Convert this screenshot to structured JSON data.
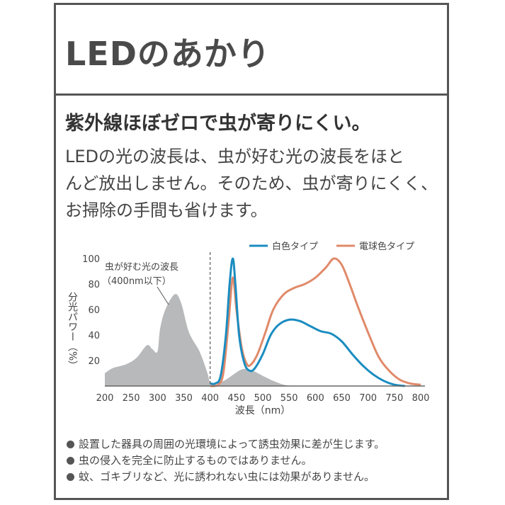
{
  "header": {
    "title": "LEDのあかり"
  },
  "headline": "紫外線ほぼゼロで虫が寄りにくい。",
  "body_lines": [
    "LEDの光の波長は、虫が好む光の波長をほと",
    "んど放出しません。そのため、虫が寄りにくく、",
    "お掃除の手間も省けます。"
  ],
  "chart_data": {
    "type": "line",
    "xlabel": "波長（nm）",
    "ylabel": "分光パワー（%）",
    "xlim": [
      200,
      800
    ],
    "ylim": [
      0,
      100
    ],
    "xticks": [
      200,
      250,
      300,
      350,
      400,
      450,
      500,
      550,
      600,
      650,
      700,
      750,
      800
    ],
    "yticks": [
      20,
      40,
      60,
      80,
      100
    ],
    "grid": false,
    "legend_position": "top-right",
    "annotation": {
      "line1": "虫が好む光の波長",
      "line2": "（400nm以下）",
      "boundary_x": 400
    },
    "colors": {
      "white": "#1a8cc0",
      "bulb": "#e08a6a",
      "insect": "#b8b9bb"
    },
    "series": [
      {
        "name": "白色タイプ",
        "type": "line",
        "x": [
          400,
          410,
          420,
          430,
          437,
          443,
          448,
          455,
          465,
          475,
          485,
          500,
          515,
          530,
          550,
          570,
          590,
          610,
          630,
          650,
          670,
          690,
          710,
          730,
          750,
          770
        ],
        "y": [
          2,
          2,
          8,
          40,
          80,
          100,
          80,
          40,
          18,
          12,
          14,
          25,
          40,
          48,
          52,
          51,
          47,
          43,
          41,
          35,
          25,
          16,
          9,
          4,
          1,
          0
        ]
      },
      {
        "name": "電球色タイプ",
        "type": "line",
        "x": [
          400,
          415,
          425,
          435,
          443,
          450,
          460,
          470,
          478,
          490,
          505,
          520,
          540,
          560,
          580,
          600,
          620,
          635,
          650,
          665,
          680,
          700,
          720,
          740,
          760,
          780,
          800
        ],
        "y": [
          0,
          1,
          10,
          50,
          85,
          60,
          30,
          17,
          17,
          25,
          42,
          60,
          72,
          77,
          80,
          85,
          93,
          100,
          95,
          80,
          63,
          42,
          23,
          12,
          5,
          2,
          1
        ]
      },
      {
        "type": "area",
        "x": [
          200,
          215,
          240,
          260,
          280,
          290,
          300,
          305,
          315,
          333,
          345,
          360,
          380,
          395,
          400,
          405,
          430,
          460,
          480,
          500,
          520,
          540,
          560
        ],
        "y": [
          10,
          14,
          17,
          22,
          32,
          29,
          27,
          45,
          60,
          72,
          65,
          42,
          27,
          10,
          2,
          0,
          5,
          13,
          12,
          8,
          4,
          1,
          0
        ]
      }
    ]
  },
  "notes": [
    "設置した器具の周囲の光環境によって誘虫効果に差が生じます。",
    "虫の侵入を完全に防止するものではありません。",
    "蚊、ゴキブリなど、光に誘われない虫には効果がありません。"
  ]
}
